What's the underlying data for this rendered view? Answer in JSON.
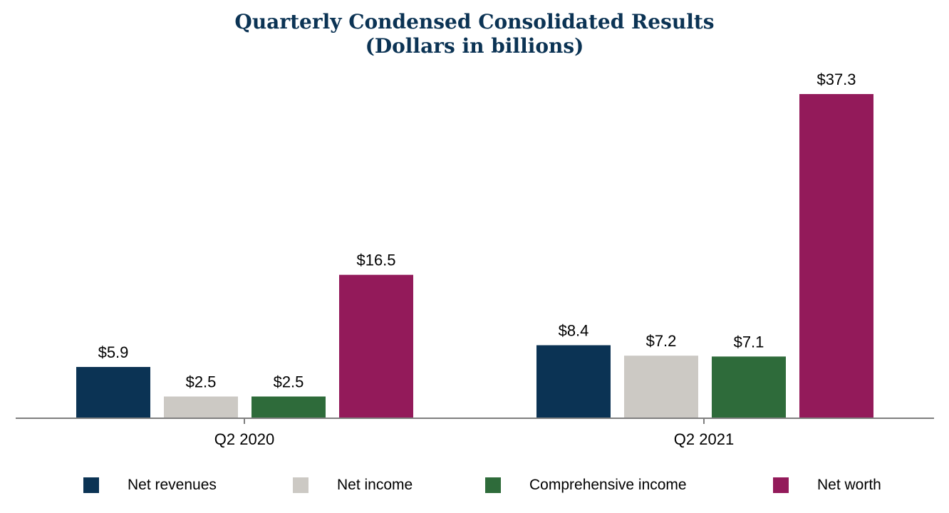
{
  "chart_data": {
    "type": "bar",
    "title": "Quarterly Condensed Consolidated Results",
    "subtitle": "(Dollars in billions)",
    "categories": [
      "Q2 2020",
      "Q2 2021"
    ],
    "series": [
      {
        "name": "Net revenues",
        "color": "#0b3354",
        "values": [
          5.9,
          8.4
        ],
        "labels": [
          "$5.9",
          "$8.4"
        ]
      },
      {
        "name": "Net income",
        "color": "#ccc9c4",
        "values": [
          2.5,
          7.2
        ],
        "labels": [
          "$2.5",
          "$7.2"
        ]
      },
      {
        "name": "Comprehensive income",
        "color": "#2e6b3a",
        "values": [
          2.5,
          7.1
        ],
        "labels": [
          "$2.5",
          "$7.1"
        ]
      },
      {
        "name": "Net worth",
        "color": "#931a5a",
        "values": [
          16.5,
          37.3
        ],
        "labels": [
          "$16.5",
          "$37.3"
        ]
      }
    ],
    "xlabel": "",
    "ylabel": "",
    "ylim": [
      0,
      37.3
    ],
    "grid": false,
    "legend_position": "bottom"
  },
  "colors": {
    "title": "#0b3354",
    "axis": "#7f7f7f",
    "text": "#000000"
  }
}
